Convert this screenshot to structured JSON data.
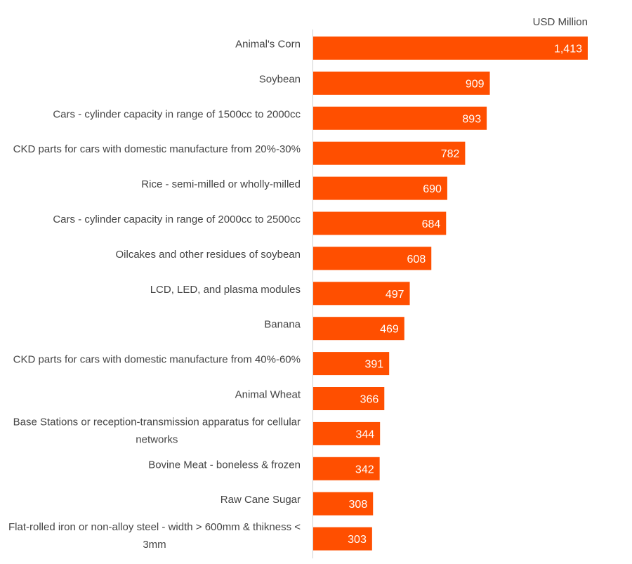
{
  "chart_data": {
    "type": "bar",
    "orientation": "horizontal",
    "unit_label": "USD Million",
    "categories": [
      "Animal's Corn",
      "Soybean",
      "Cars - cylinder capacity in range of 1500cc to 2000cc",
      "CKD parts for cars with domestic manufacture from 20%-30%",
      "Rice - semi-milled or wholly-milled",
      "Cars - cylinder capacity in range of 2000cc to 2500cc",
      "Oilcakes and other residues of soybean",
      "LCD, LED, and plasma modules",
      "Banana",
      "CKD parts for cars with domestic manufacture from 40%-60%",
      "Animal Wheat",
      "Base Stations or reception-transmission apparatus for cellular networks",
      "Bovine Meat - boneless & frozen",
      "Raw Cane Sugar",
      "Flat-rolled iron or non-alloy steel - width > 600mm & thikness < 3mm"
    ],
    "category_lines": [
      [
        "Animal's Corn"
      ],
      [
        "Soybean"
      ],
      [
        "Cars - cylinder capacity in range of 1500cc to 2000cc"
      ],
      [
        "CKD parts for cars with domestic manufacture from 20%-30%"
      ],
      [
        "Rice - semi-milled or wholly-milled"
      ],
      [
        "Cars - cylinder capacity in range of 2000cc to 2500cc"
      ],
      [
        "Oilcakes and other residues of soybean"
      ],
      [
        "LCD, LED, and plasma modules"
      ],
      [
        "Banana"
      ],
      [
        "CKD parts for cars with domestic manufacture from 40%-60%"
      ],
      [
        "Animal Wheat"
      ],
      [
        "Base Stations or reception-transmission apparatus for cellular",
        "networks"
      ],
      [
        "Bovine Meat - boneless & frozen"
      ],
      [
        "Raw Cane Sugar"
      ],
      [
        "Flat-rolled iron or non-alloy steel - width > 600mm & thikness <",
        "3mm"
      ]
    ],
    "values": [
      1413,
      909,
      893,
      782,
      690,
      684,
      608,
      497,
      469,
      391,
      366,
      344,
      342,
      308,
      303
    ],
    "value_labels": [
      "1,413",
      "909",
      "893",
      "782",
      "690",
      "684",
      "608",
      "497",
      "469",
      "391",
      "366",
      "344",
      "342",
      "308",
      "303"
    ],
    "xlim": [
      0,
      1413
    ],
    "grid": false,
    "bar_color": "#FF4F00",
    "axis_color": "#d0d0d0"
  }
}
